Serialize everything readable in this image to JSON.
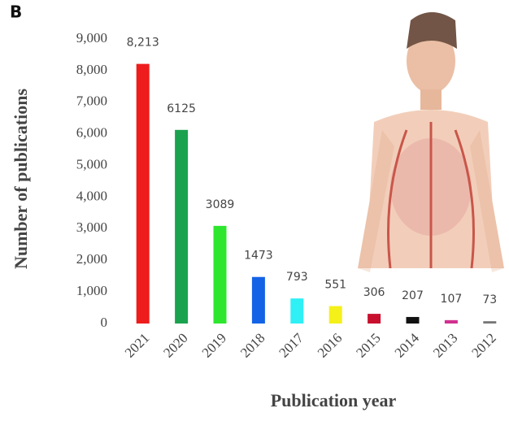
{
  "chart_data": {
    "type": "bar",
    "panel_label": "B",
    "xlabel": "Publication year",
    "ylabel": "Number of publications",
    "categories": [
      "2021",
      "2020",
      "2019",
      "2018",
      "2017",
      "2016",
      "2015",
      "2014",
      "2013",
      "2012"
    ],
    "values": [
      8213,
      6125,
      3089,
      1473,
      793,
      551,
      306,
      207,
      107,
      73
    ],
    "value_labels": [
      "8,213",
      "6125",
      "3089",
      "1473",
      "793",
      "551",
      "306",
      "207",
      "107",
      "73"
    ],
    "colors": [
      "#ee1c1c",
      "#1ba24f",
      "#2ee62e",
      "#1463e6",
      "#2ef0f5",
      "#f5f01a",
      "#c8102e",
      "#111111",
      "#d0308f",
      "#777777"
    ],
    "ylim": [
      0,
      9000
    ],
    "yticks": [
      0,
      {
        "value": 1000,
        "label": "1,000"
      },
      {
        "value": 2000,
        "label": "2,000"
      },
      {
        "value": 3000,
        "label": "3,000"
      },
      {
        "value": 4000,
        "label": "4,000"
      },
      {
        "value": 5000,
        "label": "5,000"
      },
      {
        "value": 6000,
        "label": "6,000"
      },
      {
        "value": 7000,
        "label": "7,000"
      },
      {
        "value": 8000,
        "label": "8,000"
      },
      {
        "value": 9000,
        "label": "9,000"
      }
    ],
    "grid": false
  }
}
